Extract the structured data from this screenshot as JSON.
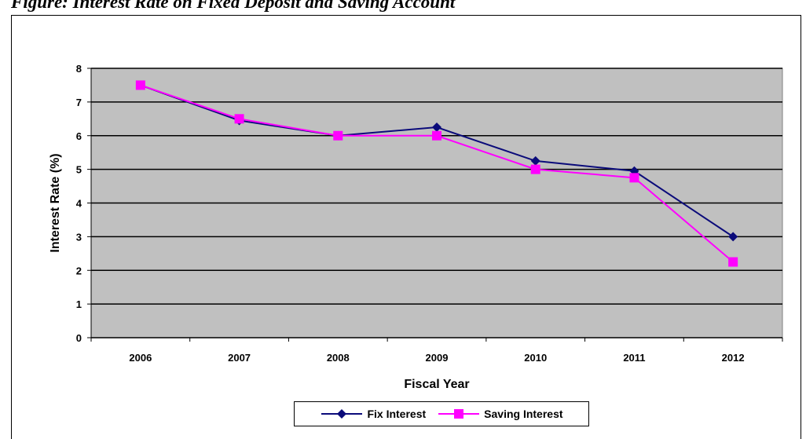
{
  "page": {
    "title": "Figure: Interest Rate on Fixed Deposit and Saving Account"
  },
  "colors": {
    "fix": "#0b0b7a",
    "saving": "#ff00ff",
    "plot_bg": "#c0c0c0",
    "grid": "#000000"
  },
  "chart_data": {
    "type": "line",
    "title": "",
    "xlabel": "Fiscal Year",
    "ylabel": "Interest Rate (%)",
    "categories": [
      "2006",
      "2007",
      "2008",
      "2009",
      "2010",
      "2011",
      "2012"
    ],
    "ylim": [
      0,
      8
    ],
    "yticks": [
      "0",
      "1",
      "2",
      "3",
      "4",
      "5",
      "6",
      "7",
      "8"
    ],
    "grid": true,
    "legend_position": "bottom",
    "series": [
      {
        "name": "Fix Interest",
        "marker": "diamond",
        "values": [
          7.5,
          6.45,
          6.0,
          6.25,
          5.25,
          4.95,
          3.0
        ]
      },
      {
        "name": "Saving Interest",
        "marker": "square",
        "values": [
          7.5,
          6.5,
          6.0,
          6.0,
          5.0,
          4.75,
          2.25
        ]
      }
    ]
  }
}
